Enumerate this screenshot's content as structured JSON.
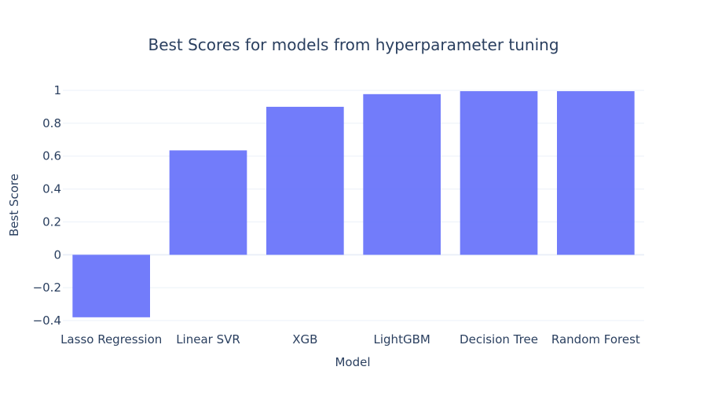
{
  "chart_data": {
    "type": "bar",
    "title": "Best Scores for models from hyperparameter tuning",
    "xlabel": "Model",
    "ylabel": "Best Score",
    "categories": [
      "Lasso Regression",
      "Linear SVR",
      "XGB",
      "LightGBM",
      "Decision Tree",
      "Random Forest"
    ],
    "values": [
      -0.38,
      0.635,
      0.9,
      0.977,
      0.995,
      0.995
    ],
    "ylim": [
      -0.4,
      1.0
    ],
    "yticks": [
      -0.4,
      -0.2,
      0,
      0.2,
      0.4,
      0.6,
      0.8,
      1.0
    ],
    "ytick_labels": [
      "−0.4",
      "−0.2",
      "0",
      "0.2",
      "0.4",
      "0.6",
      "0.8",
      "1"
    ],
    "grid": true,
    "legend": "none",
    "bar_color": "#636efa"
  }
}
